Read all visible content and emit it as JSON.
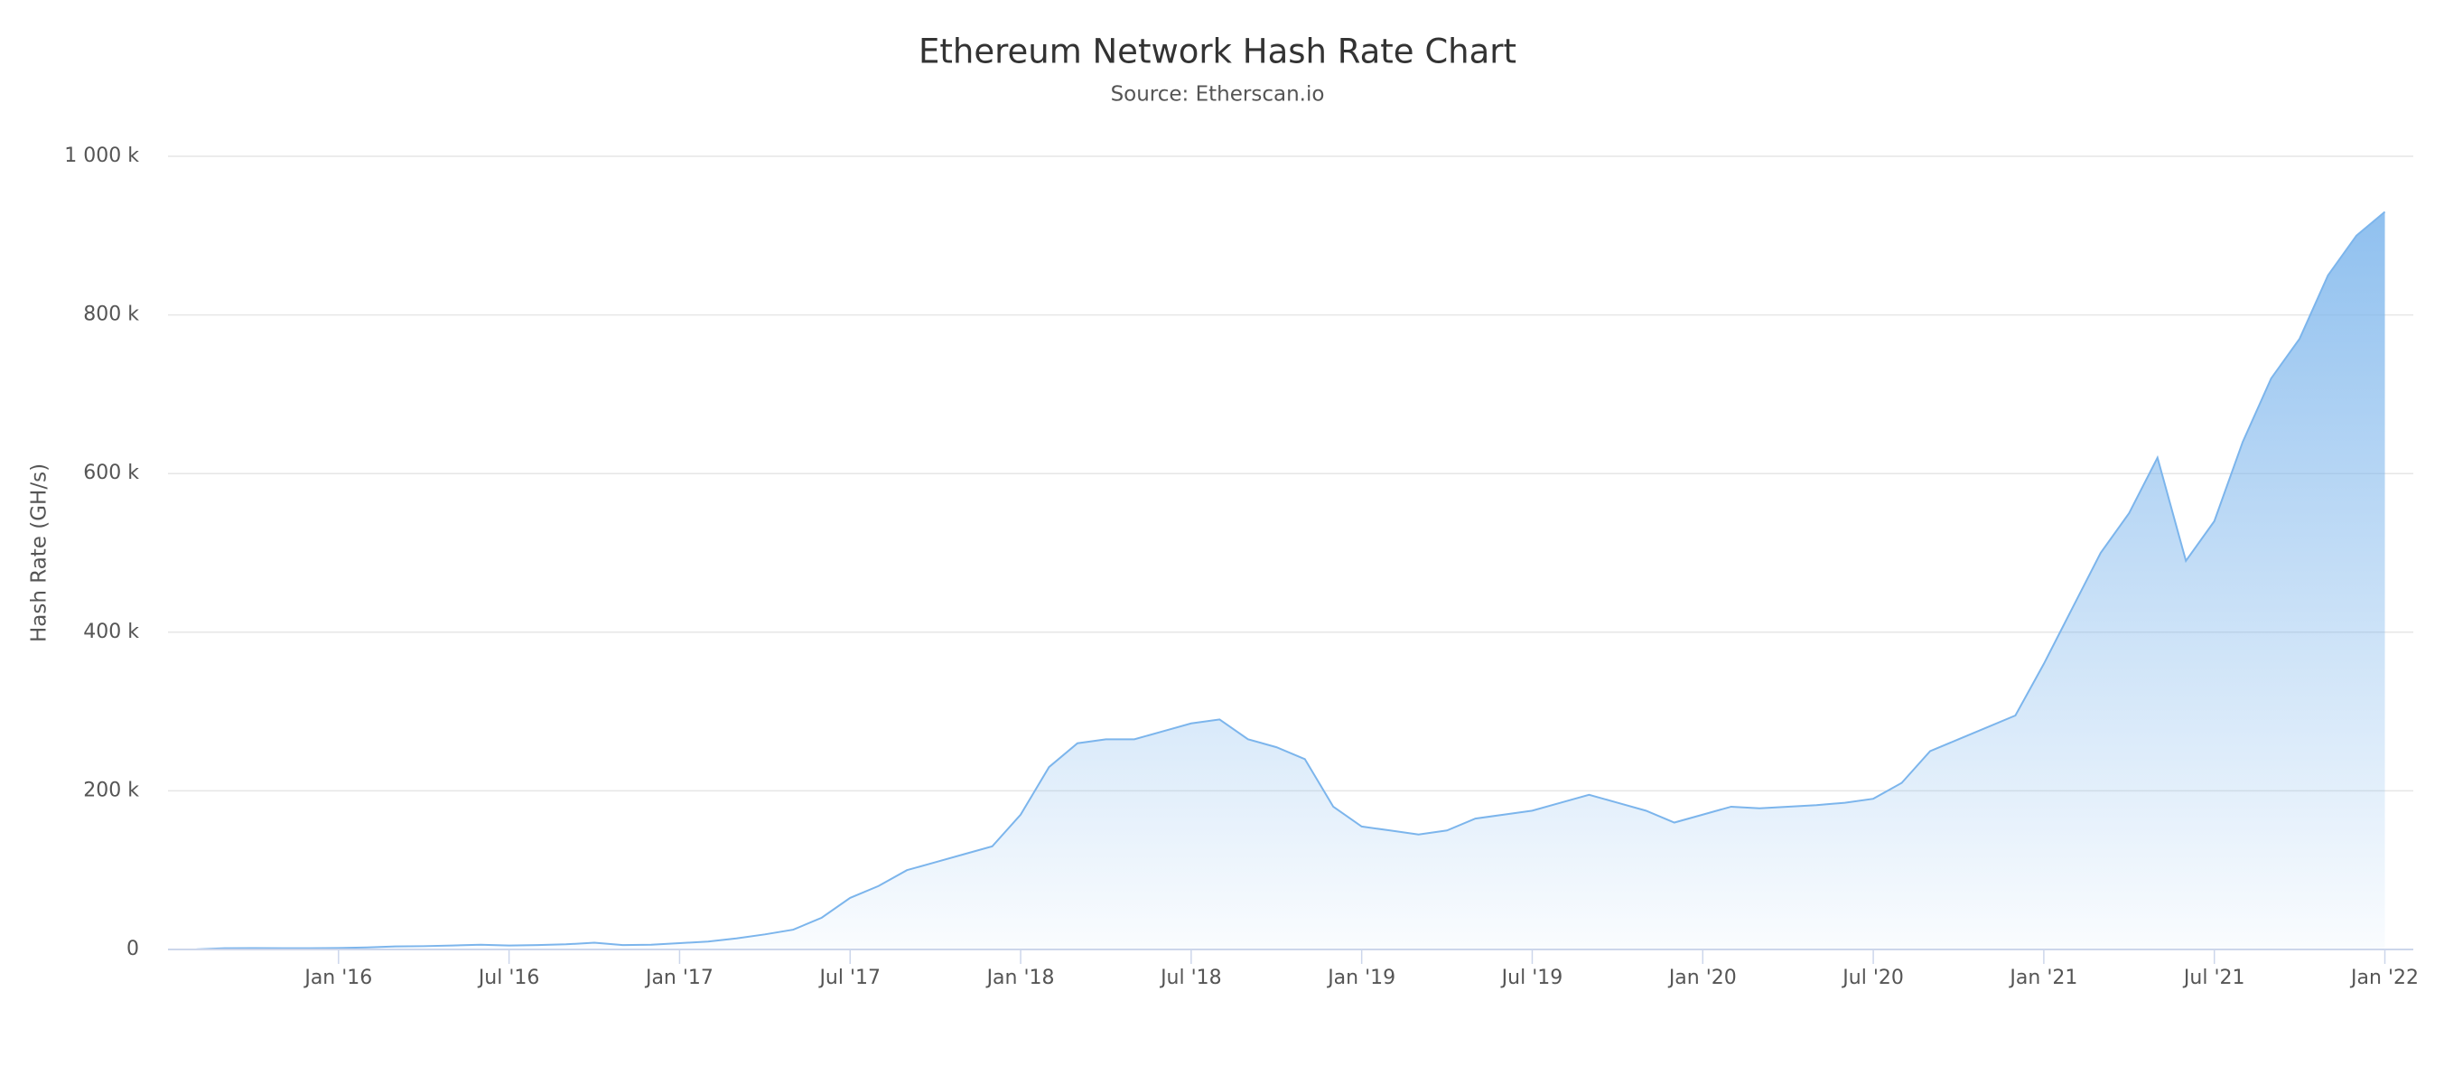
{
  "chart_data": {
    "type": "area",
    "title": "Ethereum Network Hash Rate Chart",
    "subtitle": "Source: Etherscan.io",
    "y_label": "Hash Rate (GH/s)",
    "x": [
      "2015-08",
      "2015-09",
      "2015-10",
      "2015-11",
      "2015-12",
      "2016-01",
      "2016-02",
      "2016-03",
      "2016-04",
      "2016-05",
      "2016-06",
      "2016-07",
      "2016-08",
      "2016-09",
      "2016-10",
      "2016-11",
      "2016-12",
      "2017-01",
      "2017-02",
      "2017-03",
      "2017-04",
      "2017-05",
      "2017-06",
      "2017-07",
      "2017-08",
      "2017-09",
      "2017-10",
      "2017-11",
      "2017-12",
      "2018-01",
      "2018-02",
      "2018-03",
      "2018-04",
      "2018-05",
      "2018-06",
      "2018-07",
      "2018-08",
      "2018-09",
      "2018-10",
      "2018-11",
      "2018-12",
      "2019-01",
      "2019-02",
      "2019-03",
      "2019-04",
      "2019-05",
      "2019-06",
      "2019-07",
      "2019-08",
      "2019-09",
      "2019-10",
      "2019-11",
      "2019-12",
      "2020-01",
      "2020-02",
      "2020-03",
      "2020-04",
      "2020-05",
      "2020-06",
      "2020-07",
      "2020-08",
      "2020-09",
      "2020-10",
      "2020-11",
      "2020-12",
      "2021-01",
      "2021-02",
      "2021-03",
      "2021-04",
      "2021-05",
      "2021-06",
      "2021-07",
      "2021-08",
      "2021-09",
      "2021-10",
      "2021-11",
      "2021-12",
      "2022-01"
    ],
    "series": [
      {
        "name": "Hash Rate",
        "color": "#7cb5ec",
        "values": [
          100,
          1500,
          1700,
          1500,
          1500,
          1800,
          2500,
          3800,
          4200,
          5000,
          6000,
          5000,
          5500,
          6500,
          8500,
          5500,
          6000,
          8000,
          10000,
          14000,
          19000,
          25000,
          40000,
          65000,
          80000,
          100000,
          110000,
          120000,
          130000,
          170000,
          230000,
          260000,
          265000,
          265000,
          275000,
          285000,
          290000,
          265000,
          255000,
          240000,
          180000,
          155000,
          150000,
          145000,
          150000,
          165000,
          170000,
          175000,
          185000,
          195000,
          185000,
          175000,
          160000,
          170000,
          180000,
          178000,
          180000,
          182000,
          185000,
          190000,
          210000,
          250000,
          265000,
          280000,
          295000,
          360000,
          430000,
          500000,
          550000,
          620000,
          490000,
          540000,
          640000,
          720000,
          770000,
          850000,
          900000,
          930000
        ]
      }
    ],
    "xlim": [
      "2015-07",
      "2022-02"
    ],
    "xticks": [
      {
        "value": "2016-01",
        "label": "Jan '16"
      },
      {
        "value": "2016-07",
        "label": "Jul '16"
      },
      {
        "value": "2017-01",
        "label": "Jan '17"
      },
      {
        "value": "2017-07",
        "label": "Jul '17"
      },
      {
        "value": "2018-01",
        "label": "Jan '18"
      },
      {
        "value": "2018-07",
        "label": "Jul '18"
      },
      {
        "value": "2019-01",
        "label": "Jan '19"
      },
      {
        "value": "2019-07",
        "label": "Jul '19"
      },
      {
        "value": "2020-01",
        "label": "Jan '20"
      },
      {
        "value": "2020-07",
        "label": "Jul '20"
      },
      {
        "value": "2021-01",
        "label": "Jan '21"
      },
      {
        "value": "2021-07",
        "label": "Jul '21"
      },
      {
        "value": "2022-01",
        "label": "Jan '22"
      }
    ],
    "ylim": [
      0,
      1000000
    ],
    "yticks": [
      0,
      {
        "value": 200000,
        "label": "200 k"
      },
      {
        "value": 400000,
        "label": "400 k"
      },
      {
        "value": 600000,
        "label": "600 k"
      },
      {
        "value": 800000,
        "label": "800 k"
      },
      {
        "value": 1000000,
        "label": "1 000 k"
      }
    ],
    "grid": true
  }
}
